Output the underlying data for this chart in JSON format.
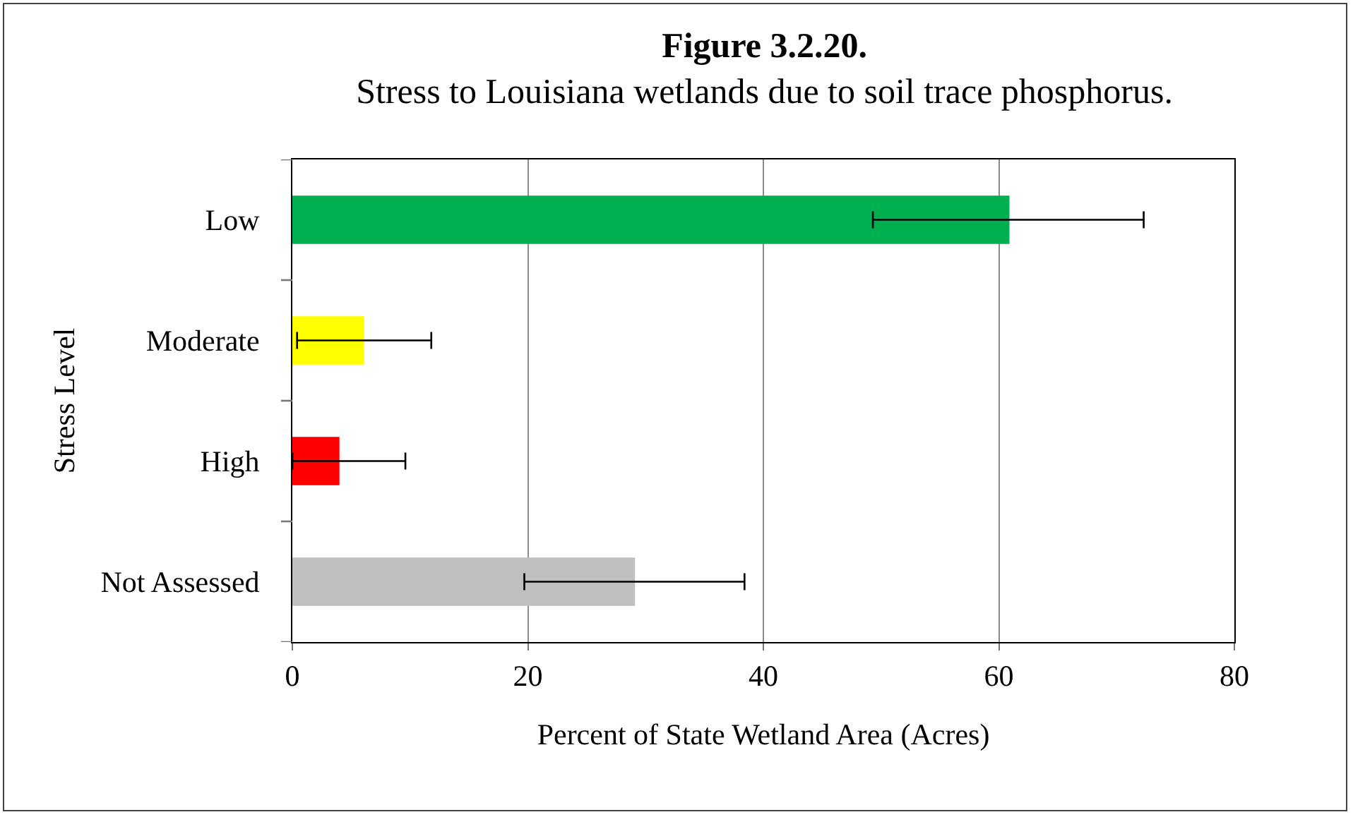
{
  "chart_data": {
    "type": "bar",
    "orientation": "horizontal",
    "title": "Figure 3.2.20.",
    "subtitle": "Stress to Louisiana wetlands due to soil trace phosphorus.",
    "xlabel": "Percent of State Wetland Area (Acres)",
    "ylabel": "Stress Level",
    "categories": [
      "Low",
      "Moderate",
      "High",
      "Not Assessed"
    ],
    "values": [
      60.9,
      6.1,
      4.0,
      29.1
    ],
    "colors": [
      "#00b050",
      "#ffff00",
      "#ff0000",
      "#bfbfbf"
    ],
    "errors": [
      [
        49.3,
        72.3
      ],
      [
        0.4,
        11.8
      ],
      [
        0,
        9.6
      ],
      [
        19.7,
        38.4
      ]
    ],
    "xlim": [
      0,
      80
    ],
    "xticks": [
      0,
      20,
      40,
      60,
      80
    ],
    "grid": "x"
  }
}
